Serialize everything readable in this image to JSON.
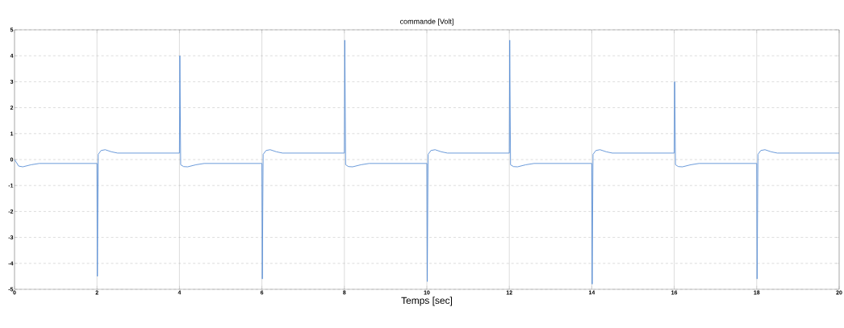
{
  "chart_data": {
    "type": "line",
    "title": "commande [Volt]",
    "xlabel": "Temps [sec]",
    "xlim": [
      0,
      20
    ],
    "ylim": [
      -5,
      5
    ],
    "xticks": [
      0,
      2,
      4,
      6,
      8,
      10,
      12,
      14,
      16,
      18,
      20
    ],
    "yticks": [
      -5,
      -4,
      -3,
      -2,
      -1,
      0,
      1,
      2,
      3,
      4,
      5
    ],
    "grid": true,
    "series": [
      {
        "color": "#5b8fd6",
        "x": [
          0,
          0.1,
          0.2,
          0.4,
          0.6,
          2,
          2.01,
          2.03,
          2.1,
          2.2,
          2.35,
          2.5,
          4,
          4.01,
          4.03,
          4.1,
          4.2,
          4.4,
          4.6,
          6,
          6.01,
          6.03,
          6.1,
          6.2,
          6.35,
          6.5,
          8,
          8.01,
          8.03,
          8.1,
          8.2,
          8.4,
          8.6,
          10,
          10.01,
          10.03,
          10.1,
          10.2,
          10.35,
          10.5,
          12,
          12.01,
          12.03,
          12.1,
          12.2,
          12.4,
          12.6,
          14,
          14.01,
          14.03,
          14.1,
          14.2,
          14.35,
          14.5,
          16,
          16.01,
          16.03,
          16.1,
          16.2,
          16.4,
          16.6,
          18,
          18.01,
          18.03,
          18.1,
          18.2,
          18.35,
          18.5,
          20
        ],
        "values": [
          0,
          -0.25,
          -0.28,
          -0.2,
          -0.15,
          -0.15,
          -4.5,
          0.2,
          0.35,
          0.38,
          0.3,
          0.25,
          0.25,
          4.0,
          -0.2,
          -0.27,
          -0.28,
          -0.2,
          -0.15,
          -0.15,
          -4.6,
          0.2,
          0.35,
          0.38,
          0.3,
          0.25,
          0.25,
          4.6,
          -0.2,
          -0.27,
          -0.28,
          -0.2,
          -0.15,
          -0.15,
          -4.7,
          0.2,
          0.35,
          0.38,
          0.3,
          0.25,
          0.25,
          4.6,
          -0.2,
          -0.27,
          -0.28,
          -0.2,
          -0.15,
          -0.15,
          -4.8,
          0.2,
          0.35,
          0.38,
          0.3,
          0.25,
          0.25,
          3.0,
          -0.2,
          -0.27,
          -0.28,
          -0.2,
          -0.15,
          -0.15,
          -4.6,
          0.2,
          0.35,
          0.38,
          0.3,
          0.25,
          0.25
        ]
      }
    ]
  }
}
